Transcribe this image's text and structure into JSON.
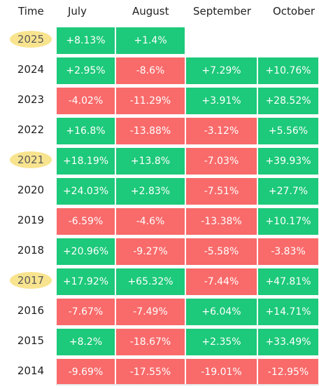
{
  "columns": {
    "time": "Time",
    "months": [
      "July",
      "August",
      "September",
      "October"
    ]
  },
  "colors": {
    "positive": "#1dc97a",
    "negative": "#f96a6a",
    "highlight": "#f8e48f"
  },
  "rows": [
    {
      "year": "2025",
      "highlighted": true,
      "values": [
        "+8.13%",
        "+1.4%",
        "",
        ""
      ]
    },
    {
      "year": "2024",
      "highlighted": false,
      "values": [
        "+2.95%",
        "-8.6%",
        "+7.29%",
        "+10.76%"
      ]
    },
    {
      "year": "2023",
      "highlighted": false,
      "values": [
        "-4.02%",
        "-11.29%",
        "+3.91%",
        "+28.52%"
      ]
    },
    {
      "year": "2022",
      "highlighted": false,
      "values": [
        "+16.8%",
        "-13.88%",
        "-3.12%",
        "+5.56%"
      ]
    },
    {
      "year": "2021",
      "highlighted": true,
      "values": [
        "+18.19%",
        "+13.8%",
        "-7.03%",
        "+39.93%"
      ]
    },
    {
      "year": "2020",
      "highlighted": false,
      "values": [
        "+24.03%",
        "+2.83%",
        "-7.51%",
        "+27.7%"
      ]
    },
    {
      "year": "2019",
      "highlighted": false,
      "values": [
        "-6.59%",
        "-4.6%",
        "-13.38%",
        "+10.17%"
      ]
    },
    {
      "year": "2018",
      "highlighted": false,
      "values": [
        "+20.96%",
        "-9.27%",
        "-5.58%",
        "-3.83%"
      ]
    },
    {
      "year": "2017",
      "highlighted": true,
      "values": [
        "+17.92%",
        "+65.32%",
        "-7.44%",
        "+47.81%"
      ]
    },
    {
      "year": "2016",
      "highlighted": false,
      "values": [
        "-7.67%",
        "-7.49%",
        "+6.04%",
        "+14.71%"
      ]
    },
    {
      "year": "2015",
      "highlighted": false,
      "values": [
        "+8.2%",
        "-18.67%",
        "+2.35%",
        "+33.49%"
      ]
    },
    {
      "year": "2014",
      "highlighted": false,
      "values": [
        "-9.69%",
        "-17.55%",
        "-19.01%",
        "-12.95%"
      ]
    }
  ]
}
